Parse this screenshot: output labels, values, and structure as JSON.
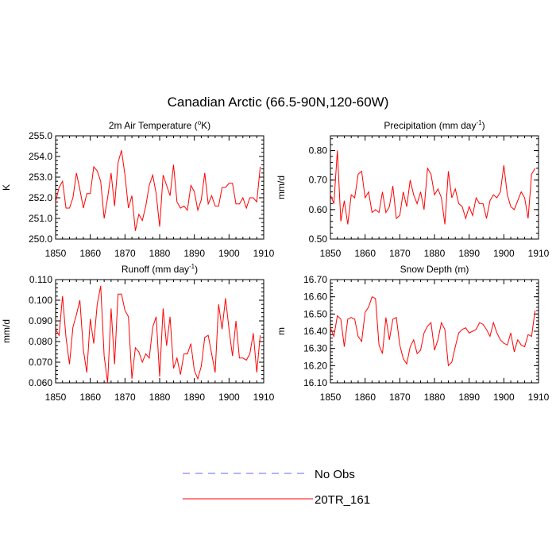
{
  "title": "Canadian Arctic (66.5-90N,120-60W)",
  "colors": {
    "model": "#ff0000",
    "obs": "#6666ff",
    "axis": "#000000"
  },
  "legend": {
    "placement": "bottom-center",
    "items": [
      {
        "label": "No Obs",
        "style": "dashed",
        "color": "#6666ff"
      },
      {
        "label": "20TR_161",
        "style": "solid",
        "color": "#ff0000"
      }
    ]
  },
  "chart_data": [
    {
      "type": "line",
      "title_main": "2m Air Temperature (",
      "title_sup": "o",
      "title_tail": "K)",
      "ylabel": "K",
      "xlim": [
        1850,
        1910
      ],
      "ylim": [
        250.0,
        255.0
      ],
      "xticks": [
        "1850",
        "1860",
        "1870",
        "1880",
        "1890",
        "1900",
        "1910"
      ],
      "yticks": [
        "250.0",
        "251.0",
        "252.0",
        "253.0",
        "254.0",
        "255.0"
      ],
      "x_start": 1850,
      "series": [
        {
          "name": "20TR_161",
          "values": [
            251.8,
            252.5,
            252.8,
            251.5,
            251.5,
            252.0,
            253.2,
            252.4,
            251.5,
            252.2,
            252.2,
            253.5,
            253.3,
            252.8,
            251.0,
            252.0,
            253.2,
            251.6,
            253.7,
            254.3,
            253.1,
            251.5,
            252.1,
            250.4,
            251.2,
            250.9,
            251.6,
            252.6,
            253.1,
            252.2,
            250.6,
            253.1,
            252.6,
            252.1,
            253.6,
            251.8,
            251.5,
            251.6,
            251.4,
            252.6,
            252.3,
            251.4,
            251.9,
            253.2,
            251.7,
            252.1,
            251.6,
            251.6,
            252.5,
            252.5,
            252.7,
            252.7,
            251.7,
            251.7,
            252.0,
            251.5,
            252.0,
            252.0,
            251.8,
            253.5
          ]
        }
      ]
    },
    {
      "type": "line",
      "title_main": "Precipitation (mm day",
      "title_sup": "-1",
      "title_tail": ")",
      "ylabel": "mm/d",
      "xlim": [
        1850,
        1910
      ],
      "ylim": [
        0.5,
        0.85
      ],
      "xticks": [
        "1850",
        "1860",
        "1870",
        "1880",
        "1890",
        "1900",
        "1910"
      ],
      "yticks": [
        "0.50",
        "0.60",
        "0.70",
        "0.80"
      ],
      "x_start": 1850,
      "series": [
        {
          "name": "20TR_161",
          "values": [
            0.65,
            0.62,
            0.8,
            0.56,
            0.63,
            0.55,
            0.65,
            0.64,
            0.72,
            0.73,
            0.64,
            0.66,
            0.59,
            0.6,
            0.59,
            0.66,
            0.59,
            0.61,
            0.68,
            0.57,
            0.58,
            0.66,
            0.61,
            0.7,
            0.65,
            0.62,
            0.66,
            0.6,
            0.74,
            0.72,
            0.65,
            0.67,
            0.64,
            0.55,
            0.73,
            0.64,
            0.67,
            0.62,
            0.61,
            0.57,
            0.61,
            0.58,
            0.64,
            0.62,
            0.62,
            0.57,
            0.63,
            0.65,
            0.64,
            0.66,
            0.75,
            0.65,
            0.61,
            0.6,
            0.63,
            0.66,
            0.64,
            0.57,
            0.72,
            0.74
          ]
        }
      ]
    },
    {
      "type": "line",
      "title_main": "Runoff (mm day",
      "title_sup": "-1",
      "title_tail": ")",
      "ylabel": "mm/d",
      "xlim": [
        1850,
        1910
      ],
      "ylim": [
        0.06,
        0.11
      ],
      "xticks": [
        "1850",
        "1860",
        "1870",
        "1880",
        "1890",
        "1900",
        "1910"
      ],
      "yticks": [
        "0.060",
        "0.070",
        "0.080",
        "0.090",
        "0.100",
        "0.110"
      ],
      "x_start": 1850,
      "series": [
        {
          "name": "20TR_161",
          "values": [
            0.086,
            0.083,
            0.102,
            0.082,
            0.069,
            0.087,
            0.093,
            0.1,
            0.076,
            0.065,
            0.091,
            0.079,
            0.098,
            0.107,
            0.073,
            0.06,
            0.096,
            0.069,
            0.103,
            0.103,
            0.095,
            0.092,
            0.062,
            0.077,
            0.075,
            0.07,
            0.074,
            0.072,
            0.087,
            0.092,
            0.063,
            0.096,
            0.078,
            0.092,
            0.067,
            0.072,
            0.064,
            0.074,
            0.074,
            0.079,
            0.066,
            0.062,
            0.068,
            0.082,
            0.083,
            0.074,
            0.065,
            0.098,
            0.086,
            0.101,
            0.086,
            0.073,
            0.09,
            0.072,
            0.072,
            0.071,
            0.074,
            0.084,
            0.065,
            0.083
          ]
        }
      ]
    },
    {
      "type": "line",
      "title_main": "Snow Depth (m)",
      "title_sup": "",
      "title_tail": "",
      "ylabel": "m",
      "xlim": [
        1850,
        1910
      ],
      "ylim": [
        16.1,
        16.7
      ],
      "xticks": [
        "1850",
        "1860",
        "1870",
        "1880",
        "1890",
        "1900",
        "1910"
      ],
      "yticks": [
        "16.10",
        "16.20",
        "16.30",
        "16.40",
        "16.50",
        "16.60",
        "16.70"
      ],
      "x_start": 1850,
      "series": [
        {
          "name": "20TR_161",
          "values": [
            16.42,
            16.37,
            16.49,
            16.47,
            16.31,
            16.47,
            16.48,
            16.47,
            16.37,
            16.34,
            16.51,
            16.54,
            16.6,
            16.59,
            16.32,
            16.27,
            16.48,
            16.35,
            16.47,
            16.48,
            16.32,
            16.24,
            16.21,
            16.31,
            16.35,
            16.27,
            16.29,
            16.39,
            16.43,
            16.45,
            16.29,
            16.35,
            16.45,
            16.41,
            16.2,
            16.22,
            16.31,
            16.39,
            16.41,
            16.42,
            16.39,
            16.4,
            16.41,
            16.45,
            16.44,
            16.41,
            16.37,
            16.45,
            16.39,
            16.35,
            16.33,
            16.32,
            16.39,
            16.28,
            16.35,
            16.32,
            16.31,
            16.38,
            16.37,
            16.52
          ]
        }
      ]
    }
  ]
}
